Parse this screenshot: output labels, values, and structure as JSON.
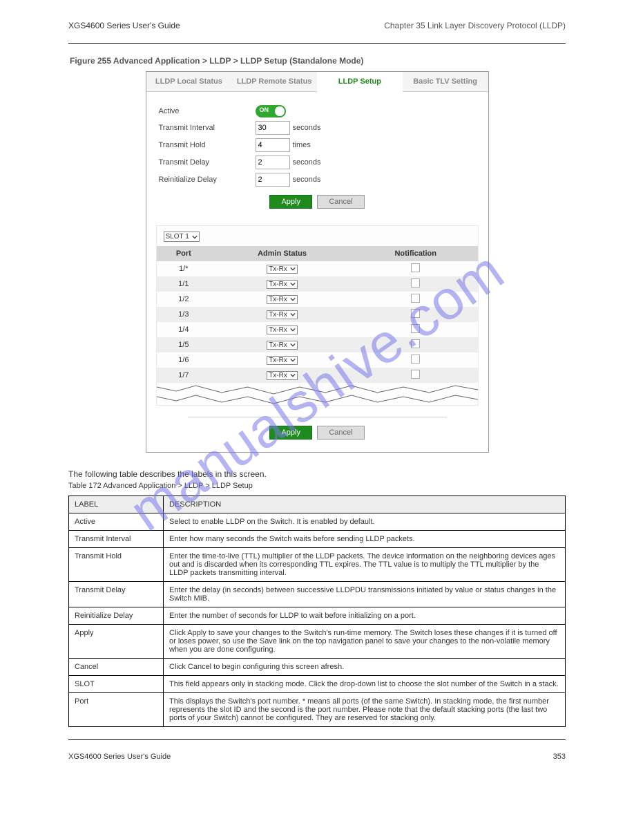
{
  "header": {
    "manual_title": "XGS4600 Series User's Guide",
    "chapter": "Chapter 35 Link Layer Discovery Protocol (LLDP)"
  },
  "figure_caption": "Figure 255  Advanced Application > LLDP > LLDP Setup (Standalone Mode)",
  "watermark": "manualshive.com",
  "screenshot": {
    "tabs": [
      "LLDP Local Status",
      "LLDP Remote Status",
      "LLDP Setup",
      "Basic TLV Setting"
    ],
    "active_tab_index": 2,
    "form": {
      "active_label": "Active",
      "toggle_text": "ON",
      "transmit_interval_label": "Transmit Interval",
      "transmit_interval_value": "30",
      "transmit_interval_unit": "seconds",
      "transmit_hold_label": "Transmit Hold",
      "transmit_hold_value": "4",
      "transmit_hold_unit": "times",
      "transmit_delay_label": "Transmit Delay",
      "transmit_delay_value": "2",
      "transmit_delay_unit": "seconds",
      "reinit_delay_label": "Reinitialize Delay",
      "reinit_delay_value": "2",
      "reinit_delay_unit": "seconds"
    },
    "buttons": {
      "apply": "Apply",
      "cancel": "Cancel"
    },
    "slot_select": "SLOT 1",
    "table": {
      "headers": [
        "Port",
        "Admin Status",
        "Notification"
      ],
      "rows": [
        {
          "port": "1/*",
          "admin": "Tx-Rx"
        },
        {
          "port": "1/1",
          "admin": "Tx-Rx"
        },
        {
          "port": "1/2",
          "admin": "Tx-Rx"
        },
        {
          "port": "1/3",
          "admin": "Tx-Rx"
        },
        {
          "port": "1/4",
          "admin": "Tx-Rx"
        },
        {
          "port": "1/5",
          "admin": "Tx-Rx"
        },
        {
          "port": "1/6",
          "admin": "Tx-Rx"
        },
        {
          "port": "1/7",
          "admin": "Tx-Rx"
        }
      ]
    }
  },
  "table_caption_prefix": "The following table describes the labels in this screen.",
  "table_caption": "Table 172  Advanced Application > LLDP > LLDP Setup",
  "doc_table": {
    "headers": [
      "LABEL",
      "DESCRIPTION"
    ],
    "rows": [
      {
        "label": "Active",
        "desc": "Select to enable LLDP on the Switch. It is enabled by default."
      },
      {
        "label": "Transmit Interval",
        "desc": "Enter how many seconds the Switch waits before sending LLDP packets."
      },
      {
        "label": "Transmit Hold",
        "desc": "Enter the time-to-live (TTL) multiplier of the LLDP packets. The device information on the neighboring devices ages out and is discarded when its corresponding TTL expires. The TTL value is to multiply the TTL multiplier by the LLDP packets transmitting interval."
      },
      {
        "label": "Transmit Delay",
        "desc": "Enter the delay (in seconds) between successive LLDPDU transmissions initiated by value or status changes in the Switch MIB."
      },
      {
        "label": "Reinitialize Delay",
        "desc": "Enter the number of seconds for LLDP to wait before initializing on a port."
      },
      {
        "label": "Apply",
        "desc": "Click Apply to save your changes to the Switch's run-time memory. The Switch loses these changes if it is turned off or loses power, so use the Save link on the top navigation panel to save your changes to the non-volatile memory when you are done configuring."
      },
      {
        "label": "Cancel",
        "desc": "Click Cancel to begin configuring this screen afresh."
      },
      {
        "label": "SLOT",
        "desc": "This field appears only in stacking mode. Click the drop-down list to choose the slot number of the Switch in a stack."
      },
      {
        "label": "Port",
        "desc": "This displays the Switch's port number. * means all ports (of the same Switch). In stacking mode, the first number represents the slot ID and the second is the port number. Please note that the default stacking ports (the last two ports of your Switch) cannot be configured. They are reserved for stacking only."
      }
    ]
  },
  "footer": {
    "title": "XGS4600 Series User's Guide",
    "page": "353"
  }
}
